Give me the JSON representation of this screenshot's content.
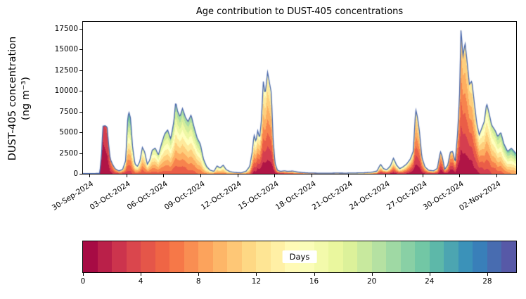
{
  "title": "Age contribution to DUST-405 concentrations",
  "ylabel_line1": "DUST-405 concentration",
  "ylabel_line2": "(ng m⁻³)",
  "chart_data": {
    "type": "area",
    "subtype": "age-stacked-area",
    "title": "Age contribution to DUST-405 concentrations",
    "xlabel": "",
    "ylabel": "DUST-405 concentration (ng m⁻³)",
    "ylim": [
      0,
      18350
    ],
    "yticks": [
      0,
      2500,
      5000,
      7500,
      10000,
      12500,
      15000,
      17500
    ],
    "xlim_days": [
      -0.51,
      34.59
    ],
    "xtick_days": [
      0,
      3,
      6,
      9,
      12,
      15,
      18,
      21,
      24,
      27,
      30,
      33
    ],
    "xtick_labels": [
      "30-Sep-2024",
      "03-Oct-2024",
      "06-Oct-2024",
      "09-Oct-2024",
      "12-Oct-2024",
      "15-Oct-2024",
      "18-Oct-2024",
      "21-Oct-2024",
      "24-Oct-2024",
      "27-Oct-2024",
      "30-Oct-2024",
      "02-Nov-2024"
    ],
    "units": "ng m⁻³",
    "line_color": "#4766ab",
    "colormap_name": "Spectral",
    "colormap_stops": [
      [
        0.0,
        "#9e0142"
      ],
      [
        0.1,
        "#d53e4f"
      ],
      [
        0.2,
        "#f46d43"
      ],
      [
        0.3,
        "#fdae61"
      ],
      [
        0.4,
        "#fee08b"
      ],
      [
        0.5,
        "#ffffbf"
      ],
      [
        0.6,
        "#e6f598"
      ],
      [
        0.7,
        "#abdda4"
      ],
      [
        0.8,
        "#66c2a5"
      ],
      [
        0.9,
        "#3288bd"
      ],
      [
        1.0,
        "#5e4fa2"
      ]
    ],
    "age_band_days": 2,
    "series_points_format": [
      "days_since_30_Sep_2024",
      "total_concentration_ng_m3",
      "age_bottom_days",
      "age_top_days"
    ],
    "series_points": [
      [
        -0.5,
        20,
        0,
        6
      ],
      [
        0.3,
        30,
        0,
        6
      ],
      [
        0.85,
        60,
        0,
        4
      ],
      [
        1.0,
        2500,
        0,
        3
      ],
      [
        1.1,
        5750,
        0,
        3
      ],
      [
        1.3,
        5800,
        0,
        4
      ],
      [
        1.45,
        5650,
        0,
        5
      ],
      [
        1.55,
        3800,
        0,
        6
      ],
      [
        1.7,
        1800,
        1,
        8
      ],
      [
        1.9,
        1100,
        2,
        10
      ],
      [
        2.1,
        600,
        3,
        12
      ],
      [
        2.4,
        350,
        4,
        14
      ],
      [
        2.7,
        520,
        4,
        16
      ],
      [
        2.95,
        1600,
        3,
        18
      ],
      [
        3.1,
        6400,
        3,
        24
      ],
      [
        3.2,
        7500,
        3,
        25
      ],
      [
        3.35,
        6700,
        3,
        25
      ],
      [
        3.5,
        3400,
        4,
        22
      ],
      [
        3.7,
        1200,
        5,
        20
      ],
      [
        3.9,
        900,
        5,
        18
      ],
      [
        4.1,
        1500,
        5,
        18
      ],
      [
        4.3,
        3200,
        4,
        18
      ],
      [
        4.5,
        2600,
        5,
        18
      ],
      [
        4.7,
        1150,
        5,
        18
      ],
      [
        4.9,
        1650,
        5,
        18
      ],
      [
        5.1,
        2850,
        5,
        19
      ],
      [
        5.35,
        3100,
        5,
        20
      ],
      [
        5.6,
        2250,
        5,
        20
      ],
      [
        5.85,
        3600,
        5,
        20
      ],
      [
        6.1,
        4800,
        5,
        21
      ],
      [
        6.35,
        5300,
        5,
        21
      ],
      [
        6.6,
        4200,
        5,
        21
      ],
      [
        6.85,
        6300,
        4,
        22
      ],
      [
        7.0,
        8700,
        4,
        22
      ],
      [
        7.15,
        7600,
        4,
        22
      ],
      [
        7.35,
        6900,
        4,
        22
      ],
      [
        7.55,
        7900,
        4,
        22
      ],
      [
        7.8,
        6800,
        4,
        22
      ],
      [
        8.0,
        6300,
        5,
        22
      ],
      [
        8.25,
        7100,
        5,
        22
      ],
      [
        8.5,
        5600,
        5,
        22
      ],
      [
        8.75,
        4300,
        6,
        22
      ],
      [
        9.0,
        3600,
        6,
        22
      ],
      [
        9.25,
        1800,
        7,
        22
      ],
      [
        9.5,
        900,
        8,
        22
      ],
      [
        9.8,
        420,
        8,
        20
      ],
      [
        10.1,
        300,
        8,
        20
      ],
      [
        10.35,
        950,
        7,
        20
      ],
      [
        10.6,
        700,
        7,
        20
      ],
      [
        10.85,
        1050,
        7,
        20
      ],
      [
        11.1,
        500,
        8,
        20
      ],
      [
        11.4,
        260,
        8,
        20
      ],
      [
        11.8,
        160,
        9,
        20
      ],
      [
        12.3,
        120,
        9,
        20
      ],
      [
        12.7,
        300,
        8,
        20
      ],
      [
        13.0,
        900,
        6,
        20
      ],
      [
        13.2,
        2600,
        2,
        18
      ],
      [
        13.35,
        4700,
        1,
        18
      ],
      [
        13.5,
        3900,
        1,
        17
      ],
      [
        13.65,
        5200,
        0,
        17
      ],
      [
        13.8,
        4300,
        0,
        16
      ],
      [
        13.95,
        6500,
        0,
        16
      ],
      [
        14.1,
        11200,
        0,
        16
      ],
      [
        14.25,
        9600,
        0,
        15
      ],
      [
        14.45,
        12300,
        0,
        15
      ],
      [
        14.6,
        11000,
        0,
        15
      ],
      [
        14.75,
        9800,
        0,
        15
      ],
      [
        14.9,
        4200,
        0,
        14
      ],
      [
        15.05,
        1300,
        1,
        14
      ],
      [
        15.25,
        420,
        2,
        15
      ],
      [
        15.5,
        290,
        3,
        16
      ],
      [
        15.8,
        360,
        4,
        16
      ],
      [
        16.1,
        290,
        5,
        17
      ],
      [
        16.5,
        330,
        6,
        18
      ],
      [
        16.9,
        210,
        7,
        18
      ],
      [
        17.3,
        140,
        8,
        19
      ],
      [
        17.8,
        100,
        9,
        20
      ],
      [
        18.5,
        80,
        10,
        20
      ],
      [
        19.2,
        70,
        10,
        21
      ],
      [
        20.0,
        90,
        11,
        22
      ],
      [
        20.8,
        80,
        12,
        22
      ],
      [
        21.5,
        100,
        12,
        23
      ],
      [
        22.2,
        120,
        12,
        23
      ],
      [
        22.8,
        170,
        10,
        22
      ],
      [
        23.3,
        320,
        6,
        22
      ],
      [
        23.6,
        1150,
        2,
        20
      ],
      [
        23.85,
        620,
        2,
        20
      ],
      [
        24.1,
        480,
        3,
        20
      ],
      [
        24.4,
        950,
        2,
        20
      ],
      [
        24.65,
        1900,
        1,
        20
      ],
      [
        24.9,
        1050,
        2,
        20
      ],
      [
        25.15,
        620,
        3,
        20
      ],
      [
        25.4,
        820,
        3,
        20
      ],
      [
        25.7,
        1150,
        2,
        18
      ],
      [
        26.0,
        1750,
        1,
        16
      ],
      [
        26.25,
        2700,
        0,
        15
      ],
      [
        26.45,
        7800,
        0,
        14
      ],
      [
        26.6,
        6800,
        0,
        14
      ],
      [
        26.75,
        5200,
        0,
        14
      ],
      [
        26.95,
        2000,
        1,
        14
      ],
      [
        27.2,
        850,
        2,
        15
      ],
      [
        27.5,
        420,
        3,
        16
      ],
      [
        27.9,
        360,
        4,
        17
      ],
      [
        28.2,
        650,
        3,
        16
      ],
      [
        28.45,
        2700,
        0,
        12
      ],
      [
        28.6,
        2100,
        0,
        12
      ],
      [
        28.8,
        550,
        2,
        14
      ],
      [
        29.05,
        1050,
        1,
        14
      ],
      [
        29.25,
        2600,
        0,
        12
      ],
      [
        29.45,
        2700,
        0,
        12
      ],
      [
        29.65,
        1400,
        1,
        12
      ],
      [
        29.85,
        5000,
        0,
        12
      ],
      [
        30.0,
        9500,
        0,
        12
      ],
      [
        30.12,
        17500,
        0,
        12
      ],
      [
        30.28,
        14200,
        0,
        12
      ],
      [
        30.45,
        15800,
        0,
        13
      ],
      [
        30.62,
        13500,
        0,
        13
      ],
      [
        30.8,
        10800,
        0,
        13
      ],
      [
        31.0,
        11200,
        0,
        14
      ],
      [
        31.2,
        8600,
        1,
        14
      ],
      [
        31.4,
        6100,
        1,
        15
      ],
      [
        31.6,
        4700,
        2,
        16
      ],
      [
        31.8,
        5500,
        2,
        17
      ],
      [
        32.0,
        6300,
        3,
        18
      ],
      [
        32.2,
        8500,
        3,
        18
      ],
      [
        32.4,
        7300,
        3,
        19
      ],
      [
        32.6,
        5900,
        4,
        20
      ],
      [
        32.9,
        5200,
        4,
        21
      ],
      [
        33.1,
        4500,
        5,
        22
      ],
      [
        33.35,
        5000,
        5,
        22
      ],
      [
        33.6,
        3600,
        6,
        23
      ],
      [
        33.9,
        2700,
        7,
        24
      ],
      [
        34.2,
        3100,
        8,
        24
      ],
      [
        34.6,
        2400,
        8,
        25
      ]
    ],
    "colorbar": {
      "label": "Days",
      "range": [
        0,
        30
      ],
      "ticks": [
        0,
        4,
        8,
        12,
        16,
        20,
        24,
        28
      ],
      "segments": 30,
      "orientation": "horizontal"
    }
  }
}
